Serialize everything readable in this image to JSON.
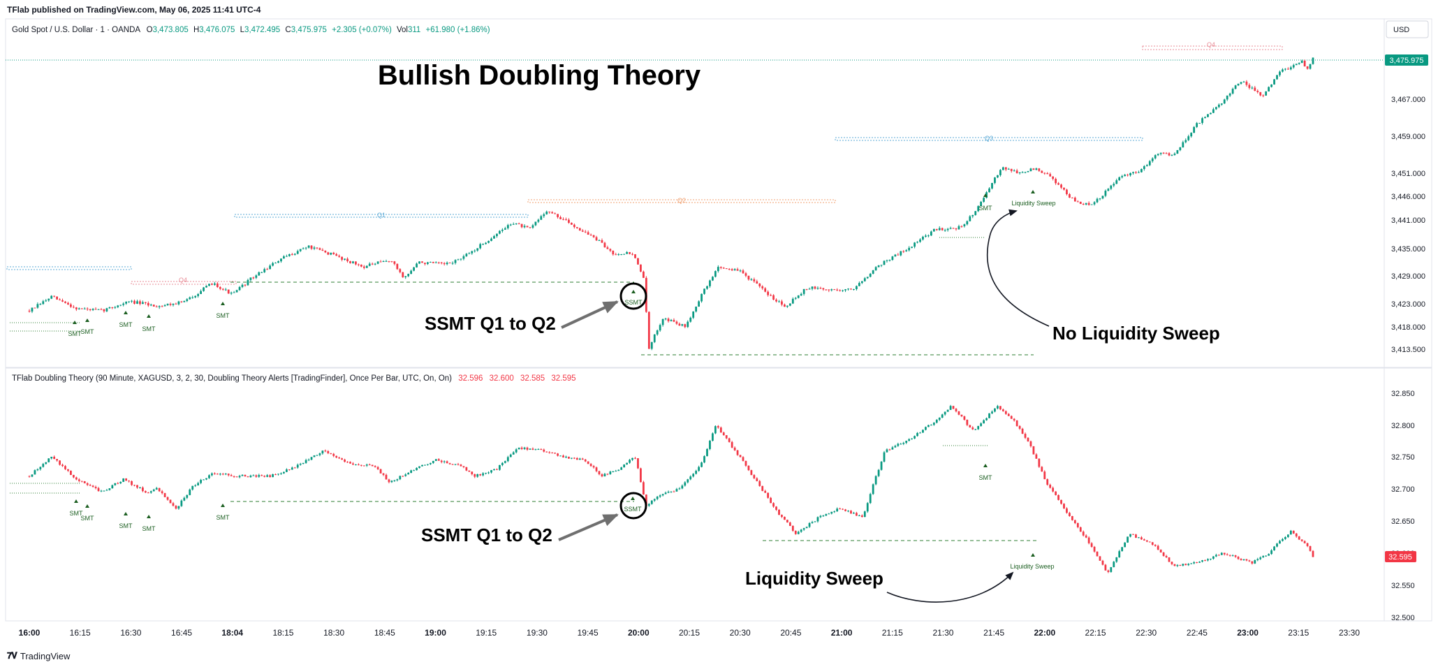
{
  "header": {
    "publish": "TFlab published on TradingView.com, May 06, 2025 11:41 UTC-4"
  },
  "top_pane": {
    "symbol": "Gold Spot / U.S. Dollar · 1 · OANDA",
    "ohlc": {
      "o": "3,473.805",
      "h": "3,476.075",
      "l": "3,472.495",
      "c": "3,475.975"
    },
    "change": "+2.305 (+0.07%)",
    "vol": "311",
    "vol_change": "+61.980 (+1.86%)",
    "currency": "USD",
    "price_label": "3,475.975",
    "title": "Bullish Doubling Theory"
  },
  "bottom_pane": {
    "legend": "TFlab Doubling Theory (90 Minute, XAGUSD, 3, 2, 30, Doubling Theory Alerts [TradingFinder], Once Per Bar, UTC, On, On)",
    "values": [
      "32.596",
      "32.600",
      "32.585",
      "32.595"
    ],
    "price_label": "32.595"
  },
  "footer": {
    "brand": "TradingView"
  },
  "colors": {
    "up": "#089981",
    "down": "#f23645",
    "smt": "#1b5e20",
    "q_blue": "#5aa9d6",
    "q_red": "#e88a95",
    "q_orange": "#f0a070"
  },
  "chart_data": [
    {
      "type": "candlestick",
      "name": "Gold Spot / U.S. Dollar",
      "title": "Bullish Doubling Theory",
      "ylim": [
        3410,
        3480
      ],
      "y_ticks": [
        "3,467.000",
        "3,459.000",
        "3,451.000",
        "3,446.000",
        "3,441.000",
        "3,435.000",
        "3,429.000",
        "3,423.000",
        "3,418.000",
        "3,413.500"
      ],
      "y_tick_values": [
        3467.0,
        3459.0,
        3451.0,
        3446.0,
        3441.0,
        3435.0,
        3429.0,
        3423.0,
        3418.0,
        3413.5
      ],
      "close_path": [
        {
          "t": 0,
          "p": 3421.5
        },
        {
          "t": 0.4,
          "p": 3424.5
        },
        {
          "t": 0.85,
          "p": 3422.0
        },
        {
          "t": 1.3,
          "p": 3421.5
        },
        {
          "t": 1.8,
          "p": 3423.5
        },
        {
          "t": 2.3,
          "p": 3422.5
        },
        {
          "t": 2.8,
          "p": 3423.5
        },
        {
          "t": 3.3,
          "p": 3427.5
        },
        {
          "t": 3.65,
          "p": 3425.0
        },
        {
          "t": 4.0,
          "p": 3428.5
        },
        {
          "t": 4.5,
          "p": 3432.5
        },
        {
          "t": 5.0,
          "p": 3435.5
        },
        {
          "t": 5.5,
          "p": 3433.5
        },
        {
          "t": 6.0,
          "p": 3431.0
        },
        {
          "t": 6.5,
          "p": 3432.5
        },
        {
          "t": 6.75,
          "p": 3428.5
        },
        {
          "t": 7.0,
          "p": 3432.0
        },
        {
          "t": 7.5,
          "p": 3431.5
        },
        {
          "t": 7.8,
          "p": 3433.0
        },
        {
          "t": 8.4,
          "p": 3438.0
        },
        {
          "t": 8.7,
          "p": 3440.5
        },
        {
          "t": 9.0,
          "p": 3439.0
        },
        {
          "t": 9.3,
          "p": 3443.0
        },
        {
          "t": 9.7,
          "p": 3440.5
        },
        {
          "t": 10.2,
          "p": 3437.0
        },
        {
          "t": 10.5,
          "p": 3434.0
        },
        {
          "t": 10.85,
          "p": 3434.0
        },
        {
          "t": 11.05,
          "p": 3429.0
        },
        {
          "t": 11.15,
          "p": 3413.5
        },
        {
          "t": 11.4,
          "p": 3420.0
        },
        {
          "t": 11.8,
          "p": 3418.0
        },
        {
          "t": 12.1,
          "p": 3425.0
        },
        {
          "t": 12.4,
          "p": 3431.0
        },
        {
          "t": 12.8,
          "p": 3430.0
        },
        {
          "t": 13.3,
          "p": 3425.0
        },
        {
          "t": 13.6,
          "p": 3422.5
        },
        {
          "t": 14.0,
          "p": 3426.5
        },
        {
          "t": 14.4,
          "p": 3426.0
        },
        {
          "t": 14.8,
          "p": 3426.0
        },
        {
          "t": 15.3,
          "p": 3431.5
        },
        {
          "t": 15.8,
          "p": 3435.0
        },
        {
          "t": 16.3,
          "p": 3439.0
        },
        {
          "t": 16.8,
          "p": 3439.5
        },
        {
          "t": 17.2,
          "p": 3446.0
        },
        {
          "t": 17.5,
          "p": 3452.5
        },
        {
          "t": 17.8,
          "p": 3451.0
        },
        {
          "t": 18.1,
          "p": 3452.0
        },
        {
          "t": 18.4,
          "p": 3450.0
        },
        {
          "t": 18.8,
          "p": 3445.0
        },
        {
          "t": 19.1,
          "p": 3444.0
        },
        {
          "t": 19.3,
          "p": 3446.0
        },
        {
          "t": 19.6,
          "p": 3450.0
        },
        {
          "t": 20.0,
          "p": 3451.5
        },
        {
          "t": 20.3,
          "p": 3455.5
        },
        {
          "t": 20.6,
          "p": 3455.0
        },
        {
          "t": 21.0,
          "p": 3461.5
        },
        {
          "t": 21.4,
          "p": 3465.5
        },
        {
          "t": 21.8,
          "p": 3471.0
        },
        {
          "t": 22.2,
          "p": 3467.5
        },
        {
          "t": 22.5,
          "p": 3473.0
        },
        {
          "t": 22.9,
          "p": 3475.0
        },
        {
          "t": 23.0,
          "p": 3473.5
        },
        {
          "t": 23.1,
          "p": 3475.97
        }
      ]
    },
    {
      "type": "candlestick",
      "name": "XAGUSD",
      "ylim": [
        32.48,
        32.87
      ],
      "y_ticks": [
        "32.850",
        "32.800",
        "32.750",
        "32.700",
        "32.650",
        "32.600",
        "32.550",
        "32.500"
      ],
      "y_tick_values": [
        32.85,
        32.8,
        32.75,
        32.7,
        32.65,
        32.6,
        32.55,
        32.5
      ],
      "close_path": [
        {
          "t": 0,
          "p": 32.72
        },
        {
          "t": 0.4,
          "p": 32.75
        },
        {
          "t": 0.85,
          "p": 32.715
        },
        {
          "t": 1.3,
          "p": 32.695
        },
        {
          "t": 1.7,
          "p": 32.715
        },
        {
          "t": 2.1,
          "p": 32.695
        },
        {
          "t": 2.3,
          "p": 32.7
        },
        {
          "t": 2.65,
          "p": 32.67
        },
        {
          "t": 2.95,
          "p": 32.705
        },
        {
          "t": 3.3,
          "p": 32.725
        },
        {
          "t": 3.7,
          "p": 32.72
        },
        {
          "t": 4.0,
          "p": 32.72
        },
        {
          "t": 4.35,
          "p": 32.72
        },
        {
          "t": 4.8,
          "p": 32.735
        },
        {
          "t": 5.3,
          "p": 32.76
        },
        {
          "t": 5.75,
          "p": 32.74
        },
        {
          "t": 6.2,
          "p": 32.735
        },
        {
          "t": 6.5,
          "p": 32.71
        },
        {
          "t": 6.8,
          "p": 32.725
        },
        {
          "t": 7.3,
          "p": 32.745
        },
        {
          "t": 7.8,
          "p": 32.735
        },
        {
          "t": 8.0,
          "p": 32.72
        },
        {
          "t": 8.4,
          "p": 32.73
        },
        {
          "t": 8.8,
          "p": 32.765
        },
        {
          "t": 9.2,
          "p": 32.76
        },
        {
          "t": 9.6,
          "p": 32.75
        },
        {
          "t": 10.0,
          "p": 32.745
        },
        {
          "t": 10.3,
          "p": 32.72
        },
        {
          "t": 10.6,
          "p": 32.73
        },
        {
          "t": 10.9,
          "p": 32.75
        },
        {
          "t": 11.1,
          "p": 32.675
        },
        {
          "t": 11.35,
          "p": 32.69
        },
        {
          "t": 11.7,
          "p": 32.7
        },
        {
          "t": 12.1,
          "p": 32.74
        },
        {
          "t": 12.35,
          "p": 32.8
        },
        {
          "t": 12.7,
          "p": 32.76
        },
        {
          "t": 13.1,
          "p": 32.71
        },
        {
          "t": 13.5,
          "p": 32.66
        },
        {
          "t": 13.8,
          "p": 32.63
        },
        {
          "t": 14.2,
          "p": 32.655
        },
        {
          "t": 14.6,
          "p": 32.67
        },
        {
          "t": 15.0,
          "p": 32.655
        },
        {
          "t": 15.2,
          "p": 32.71
        },
        {
          "t": 15.4,
          "p": 32.76
        },
        {
          "t": 15.8,
          "p": 32.775
        },
        {
          "t": 16.2,
          "p": 32.8
        },
        {
          "t": 16.6,
          "p": 32.83
        },
        {
          "t": 17.0,
          "p": 32.79
        },
        {
          "t": 17.4,
          "p": 32.83
        },
        {
          "t": 17.7,
          "p": 32.81
        },
        {
          "t": 18.0,
          "p": 32.77
        },
        {
          "t": 18.3,
          "p": 32.71
        },
        {
          "t": 18.7,
          "p": 32.66
        },
        {
          "t": 19.0,
          "p": 32.625
        },
        {
          "t": 19.4,
          "p": 32.57
        },
        {
          "t": 19.8,
          "p": 32.63
        },
        {
          "t": 20.2,
          "p": 32.615
        },
        {
          "t": 20.6,
          "p": 32.58
        },
        {
          "t": 21.0,
          "p": 32.585
        },
        {
          "t": 21.5,
          "p": 32.6
        },
        {
          "t": 22.0,
          "p": 32.585
        },
        {
          "t": 22.3,
          "p": 32.6
        },
        {
          "t": 22.7,
          "p": 32.635
        },
        {
          "t": 23.0,
          "p": 32.61
        },
        {
          "t": 23.1,
          "p": 32.595
        }
      ]
    }
  ],
  "x_axis": {
    "labels": [
      "16:00",
      "16:15",
      "16:30",
      "16:45",
      "18:04",
      "18:15",
      "18:30",
      "18:45",
      "19:00",
      "19:15",
      "19:30",
      "19:45",
      "20:00",
      "20:15",
      "20:30",
      "20:45",
      "21:00",
      "21:15",
      "21:30",
      "21:45",
      "22:00",
      "22:15",
      "22:30",
      "22:45",
      "23:00",
      "23:15",
      "23:30"
    ],
    "bold": [
      "16:00",
      "18:04",
      "19:00",
      "20:00",
      "21:00",
      "22:00",
      "23:00"
    ]
  },
  "annotations": {
    "smt": "SMT",
    "ssmt_small": "SSMT",
    "liq_small": "Liquidity Sweep",
    "q1": "Q1",
    "q2": "Q2",
    "q3": "Q3",
    "q4": "Q4",
    "top_ssmt": "SSMT Q1 to Q2",
    "top_no_liq": "No Liquidity Sweep",
    "bot_ssmt": "SSMT Q1 to Q2",
    "bot_liq": "Liquidity Sweep"
  }
}
